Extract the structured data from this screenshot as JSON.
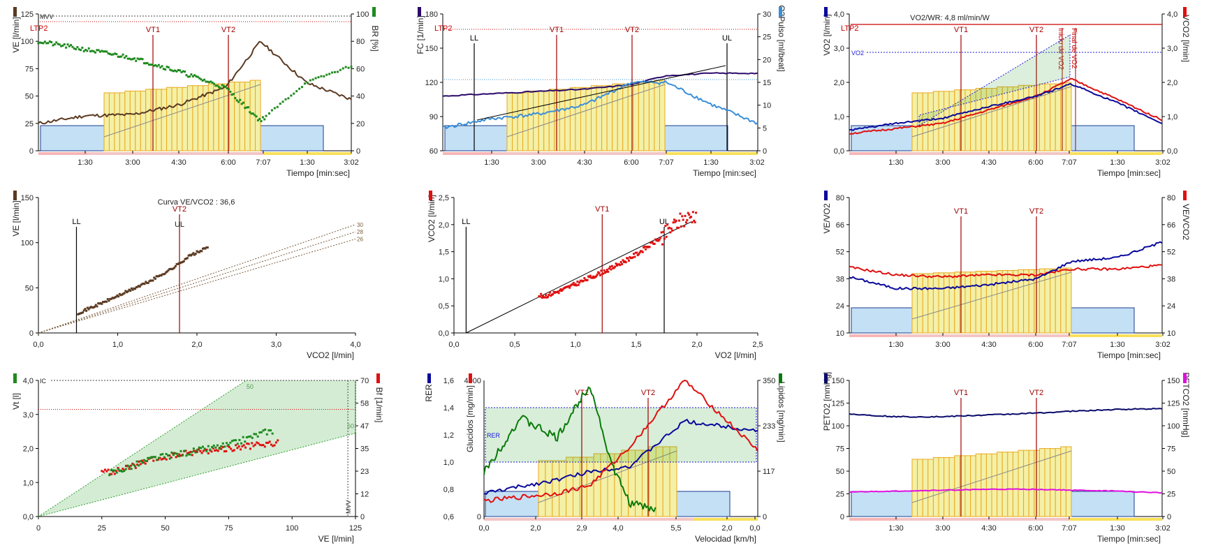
{
  "colors": {
    "ve": "#5b3a22",
    "br": "#1f8a1f",
    "fc": "#2b0a6b",
    "o2pulse": "#3a8fd9",
    "vo2": "#0a0a9c",
    "vco2": "#e01010",
    "vt": "#a00000",
    "grid": "#000000",
    "rest_fill": "#c4e0f5",
    "exercise_fill": "#f4f0a6",
    "load_stroke": "#e8a820",
    "pink_band": "#f7b6b6",
    "yellow_band": "#f8e05a",
    "green_area": "#2aa02a",
    "glucidos": "#0a7a0a",
    "lipidos": "#e01010",
    "rer": "#0a0a9c",
    "petco2": "#e010e0",
    "peto2": "#0a0a6b",
    "ltp": "#c00000"
  },
  "icons": [
    "legend-swatch-icon"
  ],
  "panels": {
    "p1": {
      "left_label": "VE [l/min]",
      "right_label": "BR [%]",
      "xlabel": "Tiempo [min:sec]",
      "yticks_l": [
        "125",
        "100",
        "75",
        "50",
        "25",
        "0"
      ],
      "yticks_r": [
        "100",
        "80",
        "60",
        "40",
        "20",
        "0"
      ],
      "xticks": [
        "1:30",
        "3:00",
        "4:30",
        "6:00",
        "7:07",
        "1:30",
        "3:02"
      ],
      "markers": [
        "LTP2",
        "VT1",
        "VT2"
      ],
      "mvv": "MVV"
    },
    "p2": {
      "left_label": "FC [1/min]",
      "right_label": "O2Pulso [ml/beat]",
      "xlabel": "Tiempo [min:sec]",
      "yticks_l": [
        "180",
        "150",
        "120",
        "90",
        "60"
      ],
      "yticks_r": [
        "30",
        "25",
        "20",
        "15",
        "10",
        "5",
        "0"
      ],
      "xticks": [
        "1:30",
        "3:00",
        "4:30",
        "6:00",
        "7:07",
        "1:30",
        "3:02"
      ],
      "markers": [
        "LTP2",
        "LL",
        "VT1",
        "VT2",
        "UL"
      ]
    },
    "p3": {
      "left_label": "VO2 [l/min]",
      "right_label": "VCO2 [l/min]",
      "xlabel": "Tiempo [min:sec]",
      "title": "VO2/WR: 4,8 ml/min/W",
      "yticks_l": [
        "4,0",
        "3,0",
        "2,0",
        "1,0",
        "0,0"
      ],
      "yticks_r": [
        "4,0",
        "3,0",
        "2,0",
        "1,0",
        "0,0"
      ],
      "xticks": [
        "1:30",
        "3:00",
        "4:30",
        "6:00",
        "7:07",
        "1:30",
        "3:02"
      ],
      "markers": [
        "LTP2",
        "VT1",
        "VT2"
      ],
      "vo2_ref": "VO2",
      "annot1": "Inicio de VO2",
      "annot2": "Final de VO2"
    },
    "p4": {
      "left_label": "VE [l/min]",
      "xlabel": "VCO2 [l/min]",
      "title": "Curva VE/VCO2 : 36,6",
      "yticks_l": [
        "150",
        "100",
        "50",
        "0"
      ],
      "xticks": [
        "0,0",
        "1,0",
        "2,0",
        "3,0",
        "4,0"
      ],
      "markers": [
        "LL",
        "VT2",
        "UL"
      ],
      "iso": [
        "30",
        "28",
        "26"
      ]
    },
    "p5": {
      "left_label": "VCO2 [l/min]",
      "xlabel": "VO2 [l/min]",
      "yticks_l": [
        "2,5",
        "2,0",
        "1,5",
        "1,0",
        "0,5",
        "0,0"
      ],
      "xticks": [
        "0,0",
        "0,5",
        "1,0",
        "1,5",
        "2,0",
        "2,5"
      ],
      "markers": [
        "LL",
        "VT1",
        "UL"
      ]
    },
    "p6": {
      "left_label": "VE/VO2",
      "right_label": "VE/VCO2",
      "xlabel": "Tiempo [min:sec]",
      "yticks_l": [
        "80",
        "66",
        "52",
        "38",
        "24",
        "10"
      ],
      "yticks_r": [
        "80",
        "66",
        "52",
        "38",
        "24",
        "10"
      ],
      "xticks": [
        "1:30",
        "3:00",
        "4:30",
        "6:00",
        "7:07",
        "1:30",
        "3:02"
      ],
      "markers": [
        "VT1",
        "VT2"
      ]
    },
    "p7": {
      "left_label": "Vt [l]",
      "right_label": "Bf [1/min]",
      "xlabel": "VE [l/min]",
      "yticks_l": [
        "4,0",
        "3,0",
        "2,0",
        "1,0",
        "0,0"
      ],
      "yticks_r": [
        "70",
        "58",
        "47",
        "35",
        "23",
        "12",
        "0"
      ],
      "xticks": [
        "0",
        "25",
        "50",
        "75",
        "100",
        "125"
      ],
      "ic": "IC",
      "mvv": "MVV",
      "iso": [
        "50",
        "60"
      ]
    },
    "p8": {
      "left_label": "RER",
      "left2_label": "Glucidos [mg/min]",
      "right_label": "Lipidos [mg/min]",
      "xlabel": "Velocidad [km/h]",
      "yticks_rer": [
        "1,6",
        "1,4",
        "1,2",
        "1,0",
        "0,8",
        "0,6"
      ],
      "yticks_g": [
        "4000",
        "0"
      ],
      "yticks_r": [
        "350",
        "233",
        "117",
        "0"
      ],
      "xticks": [
        "0,0",
        "2,0",
        "2,9",
        "4,0",
        "5,5",
        "2,0",
        "0,0"
      ],
      "markers": [
        "VT1",
        "VT2"
      ],
      "rer_ref": "RER"
    },
    "p9": {
      "left_label": "PETO2 [mmHg]",
      "right_label": "PETCO2 [mmHg]",
      "xlabel": "Tiempo [min:sec]",
      "yticks_l": [
        "150",
        "125",
        "100",
        "75",
        "50",
        "25",
        "0"
      ],
      "yticks_r": [
        "150",
        "125",
        "100",
        "75",
        "50",
        "25",
        "0"
      ],
      "xticks": [
        "1:30",
        "3:00",
        "4:30",
        "6:00",
        "7:07",
        "1:30",
        "3:02"
      ],
      "markers": [
        "VT1",
        "VT2"
      ]
    }
  },
  "chart_data": [
    {
      "type": "line",
      "title": "",
      "xlabel": "Tiempo [min:sec]",
      "ylabel": "VE [l/min]",
      "y2label": "BR [%]",
      "ylim": [
        0,
        125
      ],
      "y2lim": [
        0,
        100
      ],
      "x": [
        0,
        1.5,
        3,
        4.5,
        6,
        7.12,
        8.6,
        10.03
      ],
      "series": [
        {
          "name": "VE",
          "values": [
            25,
            32,
            33,
            42,
            58,
            100,
            62,
            47
          ]
        },
        {
          "name": "BR",
          "values": [
            80,
            74,
            68,
            58,
            46,
            22,
            50,
            62
          ]
        }
      ],
      "annotations": {
        "VT1": 3.7,
        "VT2": 6.0,
        "LTP2": 0
      }
    },
    {
      "type": "line",
      "xlabel": "Tiempo [min:sec]",
      "ylabel": "FC [1/min]",
      "y2label": "O2Pulso [ml/beat]",
      "ylim": [
        60,
        180
      ],
      "y2lim": [
        0,
        30
      ],
      "x": [
        0,
        1.5,
        3,
        4.5,
        6,
        7.12,
        8.6,
        10.03
      ],
      "series": [
        {
          "name": "FC",
          "values": [
            108,
            110,
            112,
            114,
            118,
            126,
            128,
            128
          ]
        },
        {
          "name": "O2Pulso",
          "values": [
            5,
            7,
            8,
            10,
            15,
            15,
            10,
            6
          ]
        }
      ],
      "annotations": {
        "LL": 0.9,
        "VT1": 3.7,
        "VT2": 6.0,
        "UL": 9.2
      }
    },
    {
      "type": "line",
      "title": "VO2/WR: 4,8 ml/min/W",
      "xlabel": "Tiempo [min:sec]",
      "ylabel": "VO2 [l/min]",
      "y2label": "VCO2 [l/min]",
      "ylim": [
        0,
        4
      ],
      "y2lim": [
        0,
        4
      ],
      "x": [
        0,
        1.5,
        3,
        4.5,
        6,
        7.12,
        8.6,
        10.03
      ],
      "series": [
        {
          "name": "VO2",
          "values": [
            0.6,
            0.8,
            0.95,
            1.3,
            1.6,
            1.95,
            1.4,
            0.8
          ]
        },
        {
          "name": "VCO2",
          "values": [
            0.5,
            0.65,
            0.8,
            1.2,
            1.6,
            2.1,
            1.5,
            0.9
          ]
        }
      ],
      "annotations": {
        "VT1": 3.7,
        "VT2": 6.0
      }
    },
    {
      "type": "scatter",
      "title": "Curva VE/VCO2 : 36,6",
      "xlabel": "VCO2 [l/min]",
      "ylabel": "VE [l/min]",
      "xlim": [
        0,
        4
      ],
      "ylim": [
        0,
        150
      ],
      "series": [
        {
          "name": "VE",
          "x": [
            0.5,
            0.8,
            1.1,
            1.4,
            1.7,
            1.9,
            2.15
          ],
          "values": [
            22,
            33,
            45,
            57,
            72,
            85,
            95
          ]
        }
      ],
      "annotations": {
        "LL": 0.48,
        "VT2": 1.78,
        "UL": 1.78
      }
    },
    {
      "type": "scatter",
      "xlabel": "VO2 [l/min]",
      "ylabel": "VCO2 [l/min]",
      "xlim": [
        0,
        2.5
      ],
      "ylim": [
        0,
        2.5
      ],
      "series": [
        {
          "name": "VCO2",
          "x": [
            0.75,
            0.9,
            1.1,
            1.3,
            1.5,
            1.7,
            1.85,
            2.0
          ],
          "values": [
            0.68,
            0.8,
            1.0,
            1.2,
            1.45,
            1.75,
            2.05,
            2.2
          ]
        }
      ],
      "annotations": {
        "LL": 0.1,
        "VT1": 1.22,
        "UL": 1.73
      }
    },
    {
      "type": "line",
      "xlabel": "Tiempo [min:sec]",
      "ylabel": "VE/VO2",
      "y2label": "VE/VCO2",
      "ylim": [
        10,
        80
      ],
      "y2lim": [
        10,
        80
      ],
      "x": [
        0,
        1.5,
        3,
        4.5,
        6,
        7.12,
        8.6,
        10.03
      ],
      "series": [
        {
          "name": "VE/VO2",
          "values": [
            39,
            33,
            33,
            35,
            38,
            47,
            49,
            57
          ]
        },
        {
          "name": "VE/VCO2",
          "values": [
            44,
            40,
            39,
            40,
            40,
            43,
            43,
            45
          ]
        }
      ],
      "annotations": {
        "VT1": 3.7,
        "VT2": 6.0
      }
    },
    {
      "type": "scatter",
      "xlabel": "VE [l/min]",
      "ylabel": "Vt [l]",
      "y2label": "Bf [1/min]",
      "xlim": [
        0,
        125
      ],
      "ylim": [
        0,
        4
      ],
      "y2lim": [
        0,
        70
      ],
      "series": [
        {
          "name": "Vt",
          "x": [
            30,
            45,
            60,
            75,
            90
          ],
          "values": [
            1.3,
            1.7,
            1.9,
            2.1,
            2.5
          ]
        },
        {
          "name": "Bf",
          "x": [
            30,
            45,
            60,
            75,
            95
          ],
          "values": [
            23,
            29,
            33,
            35,
            38
          ]
        }
      ]
    },
    {
      "type": "line",
      "xlabel": "Velocidad [km/h]",
      "ylabel": "RER",
      "y2label": "Lipidos [mg/min]",
      "ylim": [
        0.6,
        1.6
      ],
      "y2lim": [
        0,
        350
      ],
      "x": [
        0,
        2.0,
        2.9,
        4.0,
        5.5,
        7.5
      ],
      "series": [
        {
          "name": "RER",
          "values": [
            0.77,
            0.87,
            0.93,
            0.97,
            1.3,
            1.23
          ]
        },
        {
          "name": "Glucidos",
          "values": [
            1300,
            2700,
            3900,
            400,
            null,
            null
          ]
        },
        {
          "name": "Lipidos",
          "values": [
            40,
            60,
            80,
            180,
            350,
            170
          ]
        }
      ],
      "annotations": {
        "VT1": 2.9,
        "VT2": 4.65
      }
    },
    {
      "type": "line",
      "xlabel": "Tiempo [min:sec]",
      "ylabel": "PETO2 [mmHg]",
      "y2label": "PETCO2 [mmHg]",
      "ylim": [
        0,
        150
      ],
      "y2lim": [
        0,
        150
      ],
      "x": [
        0,
        1.5,
        3,
        4.5,
        6,
        7.12,
        8.6,
        10.03
      ],
      "series": [
        {
          "name": "PETO2",
          "values": [
            113,
            110,
            110,
            112,
            114,
            116,
            118,
            119
          ]
        },
        {
          "name": "PETCO2",
          "values": [
            27,
            28,
            29,
            30,
            30,
            29,
            28,
            26
          ]
        }
      ],
      "annotations": {
        "VT1": 3.7,
        "VT2": 6.0
      }
    }
  ]
}
